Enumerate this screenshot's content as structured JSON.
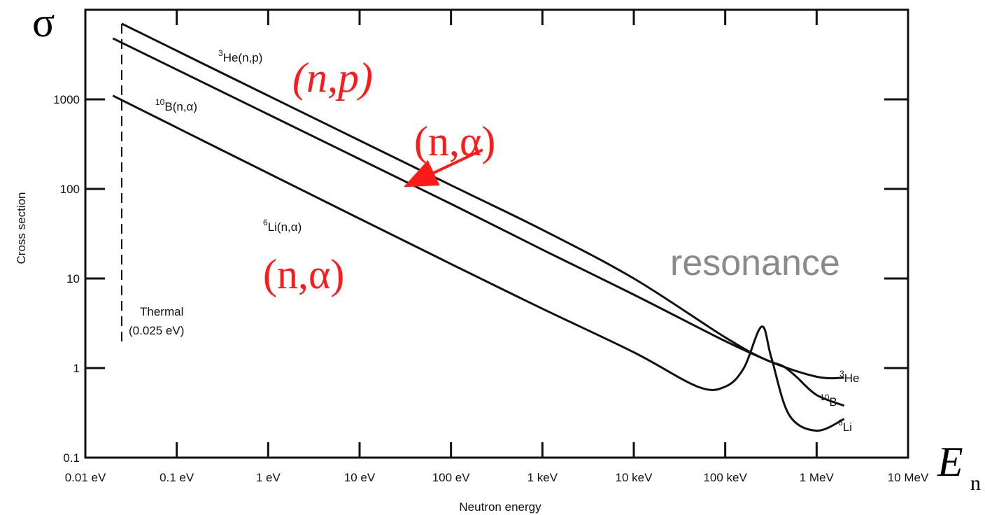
{
  "chart_data": {
    "type": "line",
    "title": "",
    "xlabel": "Neutron energy",
    "ylabel": "Cross section",
    "x_scale": "log",
    "y_scale": "log",
    "x_unit": "eV",
    "xlim": [
      0.01,
      10000000
    ],
    "ylim": [
      0.1,
      10000
    ],
    "x_ticks": [
      {
        "value": 0.01,
        "label": "0.01 eV"
      },
      {
        "value": 0.1,
        "label": "0.1 eV"
      },
      {
        "value": 1,
        "label": "1 eV"
      },
      {
        "value": 10,
        "label": "10 eV"
      },
      {
        "value": 100,
        "label": "100 eV"
      },
      {
        "value": 1000,
        "label": "1 keV"
      },
      {
        "value": 10000,
        "label": "10 keV"
      },
      {
        "value": 100000,
        "label": "100 keV"
      },
      {
        "value": 1000000,
        "label": "1 MeV"
      },
      {
        "value": 10000000,
        "label": "10 MeV"
      }
    ],
    "y_ticks": [
      {
        "value": 0.1,
        "label": "0.1"
      },
      {
        "value": 1,
        "label": "1"
      },
      {
        "value": 10,
        "label": "10"
      },
      {
        "value": 100,
        "label": "100"
      },
      {
        "value": 1000,
        "label": "1000"
      }
    ],
    "grid": false,
    "series": [
      {
        "name": "3He",
        "label_sup": "3",
        "label_main": "He(n,p)",
        "end_sup": "3",
        "end_main": "He",
        "points": [
          [
            0.025,
            7000
          ],
          [
            1,
            1100
          ],
          [
            100,
            110
          ],
          [
            1000,
            35
          ],
          [
            10000,
            10
          ],
          [
            100000,
            2.2
          ],
          [
            300000,
            1.2
          ],
          [
            1000000,
            0.8
          ],
          [
            2000000,
            0.78
          ]
        ]
      },
      {
        "name": "10B",
        "label_sup": "10",
        "label_main": "B(n,α)",
        "end_sup": "10",
        "end_main": "B",
        "points": [
          [
            0.02,
            4800
          ],
          [
            1,
            680
          ],
          [
            100,
            68
          ],
          [
            1000,
            21
          ],
          [
            10000,
            6.6
          ],
          [
            100000,
            2.0
          ],
          [
            300000,
            1.2
          ],
          [
            430000,
            1.05
          ],
          [
            600000,
            0.8
          ],
          [
            1000000,
            0.5
          ],
          [
            2000000,
            0.38
          ]
        ]
      },
      {
        "name": "6Li",
        "label_sup": "6",
        "label_main": "Li(n,α)",
        "end_sup": "6",
        "end_main": "Li",
        "points": [
          [
            0.02,
            1100
          ],
          [
            1,
            150
          ],
          [
            100,
            14.5
          ],
          [
            1000,
            4.6
          ],
          [
            10000,
            1.5
          ],
          [
            50000,
            0.62
          ],
          [
            100000,
            0.62
          ],
          [
            160000,
            1.0
          ],
          [
            250000,
            2.9
          ],
          [
            320000,
            1.3
          ],
          [
            500000,
            0.3
          ],
          [
            1000000,
            0.2
          ],
          [
            2000000,
            0.27
          ]
        ]
      }
    ],
    "annotations": {
      "thermal_line": {
        "x": 0.025,
        "label_line1": "Thermal",
        "label_line2": "(0.025 eV)"
      },
      "np": "(n,p)",
      "na_arrow": "(n,α)",
      "na_li": "(n,α)",
      "resonance": "resonance",
      "sigma": "σ",
      "energy_symbol": "E",
      "energy_subscript": "n"
    }
  }
}
